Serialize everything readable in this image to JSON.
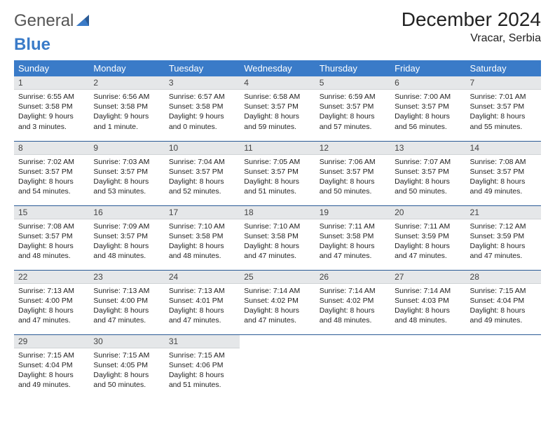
{
  "logo": {
    "part1": "General",
    "part2": "Blue"
  },
  "title": "December 2024",
  "location": "Vracar, Serbia",
  "colors": {
    "header_bg": "#3a7bc8",
    "header_fg": "#ffffff",
    "daynum_bg": "#e5e7e9",
    "row_border": "#2a5a95"
  },
  "weekdays": [
    "Sunday",
    "Monday",
    "Tuesday",
    "Wednesday",
    "Thursday",
    "Friday",
    "Saturday"
  ],
  "weeks": [
    [
      {
        "num": "1",
        "sunrise": "Sunrise: 6:55 AM",
        "sunset": "Sunset: 3:58 PM",
        "daylight": "Daylight: 9 hours and 3 minutes."
      },
      {
        "num": "2",
        "sunrise": "Sunrise: 6:56 AM",
        "sunset": "Sunset: 3:58 PM",
        "daylight": "Daylight: 9 hours and 1 minute."
      },
      {
        "num": "3",
        "sunrise": "Sunrise: 6:57 AM",
        "sunset": "Sunset: 3:58 PM",
        "daylight": "Daylight: 9 hours and 0 minutes."
      },
      {
        "num": "4",
        "sunrise": "Sunrise: 6:58 AM",
        "sunset": "Sunset: 3:57 PM",
        "daylight": "Daylight: 8 hours and 59 minutes."
      },
      {
        "num": "5",
        "sunrise": "Sunrise: 6:59 AM",
        "sunset": "Sunset: 3:57 PM",
        "daylight": "Daylight: 8 hours and 57 minutes."
      },
      {
        "num": "6",
        "sunrise": "Sunrise: 7:00 AM",
        "sunset": "Sunset: 3:57 PM",
        "daylight": "Daylight: 8 hours and 56 minutes."
      },
      {
        "num": "7",
        "sunrise": "Sunrise: 7:01 AM",
        "sunset": "Sunset: 3:57 PM",
        "daylight": "Daylight: 8 hours and 55 minutes."
      }
    ],
    [
      {
        "num": "8",
        "sunrise": "Sunrise: 7:02 AM",
        "sunset": "Sunset: 3:57 PM",
        "daylight": "Daylight: 8 hours and 54 minutes."
      },
      {
        "num": "9",
        "sunrise": "Sunrise: 7:03 AM",
        "sunset": "Sunset: 3:57 PM",
        "daylight": "Daylight: 8 hours and 53 minutes."
      },
      {
        "num": "10",
        "sunrise": "Sunrise: 7:04 AM",
        "sunset": "Sunset: 3:57 PM",
        "daylight": "Daylight: 8 hours and 52 minutes."
      },
      {
        "num": "11",
        "sunrise": "Sunrise: 7:05 AM",
        "sunset": "Sunset: 3:57 PM",
        "daylight": "Daylight: 8 hours and 51 minutes."
      },
      {
        "num": "12",
        "sunrise": "Sunrise: 7:06 AM",
        "sunset": "Sunset: 3:57 PM",
        "daylight": "Daylight: 8 hours and 50 minutes."
      },
      {
        "num": "13",
        "sunrise": "Sunrise: 7:07 AM",
        "sunset": "Sunset: 3:57 PM",
        "daylight": "Daylight: 8 hours and 50 minutes."
      },
      {
        "num": "14",
        "sunrise": "Sunrise: 7:08 AM",
        "sunset": "Sunset: 3:57 PM",
        "daylight": "Daylight: 8 hours and 49 minutes."
      }
    ],
    [
      {
        "num": "15",
        "sunrise": "Sunrise: 7:08 AM",
        "sunset": "Sunset: 3:57 PM",
        "daylight": "Daylight: 8 hours and 48 minutes."
      },
      {
        "num": "16",
        "sunrise": "Sunrise: 7:09 AM",
        "sunset": "Sunset: 3:57 PM",
        "daylight": "Daylight: 8 hours and 48 minutes."
      },
      {
        "num": "17",
        "sunrise": "Sunrise: 7:10 AM",
        "sunset": "Sunset: 3:58 PM",
        "daylight": "Daylight: 8 hours and 48 minutes."
      },
      {
        "num": "18",
        "sunrise": "Sunrise: 7:10 AM",
        "sunset": "Sunset: 3:58 PM",
        "daylight": "Daylight: 8 hours and 47 minutes."
      },
      {
        "num": "19",
        "sunrise": "Sunrise: 7:11 AM",
        "sunset": "Sunset: 3:58 PM",
        "daylight": "Daylight: 8 hours and 47 minutes."
      },
      {
        "num": "20",
        "sunrise": "Sunrise: 7:11 AM",
        "sunset": "Sunset: 3:59 PM",
        "daylight": "Daylight: 8 hours and 47 minutes."
      },
      {
        "num": "21",
        "sunrise": "Sunrise: 7:12 AM",
        "sunset": "Sunset: 3:59 PM",
        "daylight": "Daylight: 8 hours and 47 minutes."
      }
    ],
    [
      {
        "num": "22",
        "sunrise": "Sunrise: 7:13 AM",
        "sunset": "Sunset: 4:00 PM",
        "daylight": "Daylight: 8 hours and 47 minutes."
      },
      {
        "num": "23",
        "sunrise": "Sunrise: 7:13 AM",
        "sunset": "Sunset: 4:00 PM",
        "daylight": "Daylight: 8 hours and 47 minutes."
      },
      {
        "num": "24",
        "sunrise": "Sunrise: 7:13 AM",
        "sunset": "Sunset: 4:01 PM",
        "daylight": "Daylight: 8 hours and 47 minutes."
      },
      {
        "num": "25",
        "sunrise": "Sunrise: 7:14 AM",
        "sunset": "Sunset: 4:02 PM",
        "daylight": "Daylight: 8 hours and 47 minutes."
      },
      {
        "num": "26",
        "sunrise": "Sunrise: 7:14 AM",
        "sunset": "Sunset: 4:02 PM",
        "daylight": "Daylight: 8 hours and 48 minutes."
      },
      {
        "num": "27",
        "sunrise": "Sunrise: 7:14 AM",
        "sunset": "Sunset: 4:03 PM",
        "daylight": "Daylight: 8 hours and 48 minutes."
      },
      {
        "num": "28",
        "sunrise": "Sunrise: 7:15 AM",
        "sunset": "Sunset: 4:04 PM",
        "daylight": "Daylight: 8 hours and 49 minutes."
      }
    ],
    [
      {
        "num": "29",
        "sunrise": "Sunrise: 7:15 AM",
        "sunset": "Sunset: 4:04 PM",
        "daylight": "Daylight: 8 hours and 49 minutes."
      },
      {
        "num": "30",
        "sunrise": "Sunrise: 7:15 AM",
        "sunset": "Sunset: 4:05 PM",
        "daylight": "Daylight: 8 hours and 50 minutes."
      },
      {
        "num": "31",
        "sunrise": "Sunrise: 7:15 AM",
        "sunset": "Sunset: 4:06 PM",
        "daylight": "Daylight: 8 hours and 51 minutes."
      },
      {
        "empty": true
      },
      {
        "empty": true
      },
      {
        "empty": true
      },
      {
        "empty": true
      }
    ]
  ]
}
